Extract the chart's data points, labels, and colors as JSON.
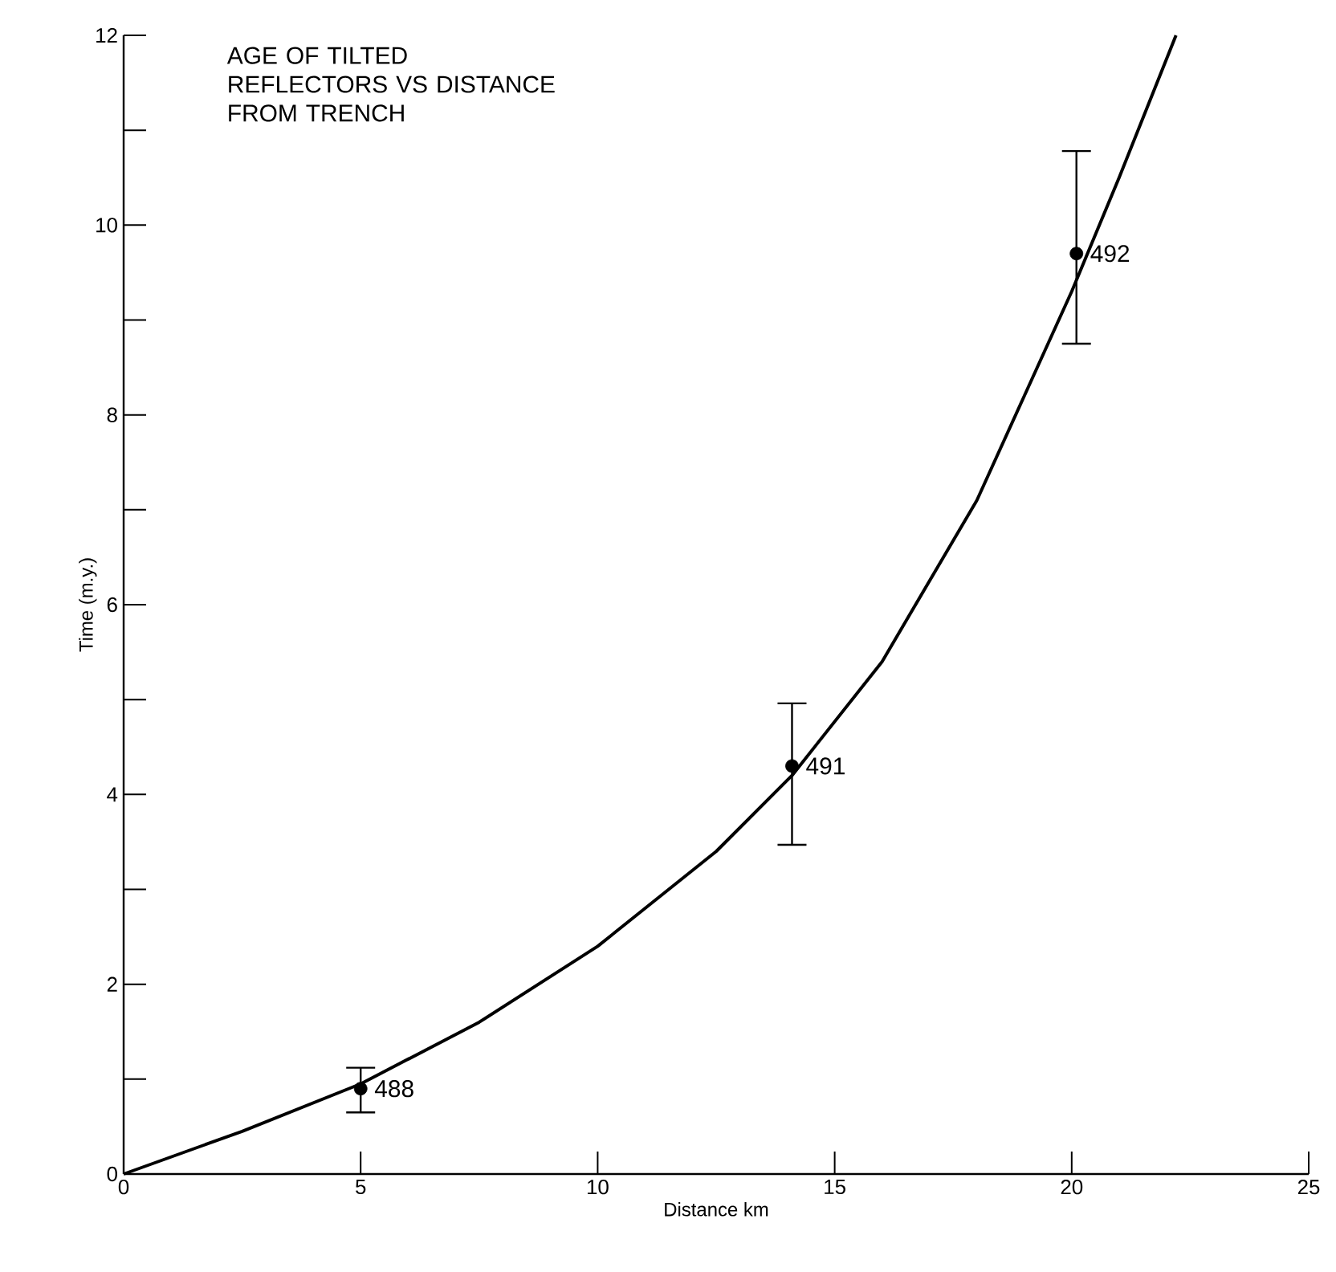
{
  "chart_data": {
    "type": "scatter",
    "title": "AGE OF TILTED REFLECTORS VS DISTANCE FROM TRENCH",
    "xlabel": "Distance km",
    "ylabel": "Time (m.y.)",
    "xlim": [
      0,
      25
    ],
    "ylim": [
      0,
      12
    ],
    "xticks": [
      0,
      5,
      10,
      15,
      20,
      25
    ],
    "yticks": [
      0,
      {
        "value": 1,
        "label": null
      },
      2,
      {
        "value": 3,
        "label": null
      },
      4,
      {
        "value": 5,
        "label": null
      },
      6,
      {
        "value": 7,
        "label": null
      },
      8,
      {
        "value": 9,
        "label": null
      },
      10,
      {
        "value": 11,
        "label": null
      },
      12
    ],
    "grid": false,
    "series": [
      {
        "type": "line",
        "color": "#000000",
        "marker": "none",
        "line_style": "solid",
        "x": [
          0,
          2.5,
          5,
          7.5,
          10,
          12.5,
          14.1,
          16,
          18,
          20,
          21,
          22.2
        ],
        "values": [
          0,
          0.45,
          0.95,
          1.6,
          2.4,
          3.4,
          4.2,
          5.4,
          7.1,
          9.3,
          10.5,
          12
        ]
      },
      {
        "color": "#000000",
        "marker": "circle",
        "x": [
          5,
          14.1,
          20.1
        ],
        "values": [
          0.9,
          4.3,
          9.7
        ],
        "errors": [
          [
            0.65,
            1.12
          ],
          [
            3.47,
            4.96
          ],
          [
            8.75,
            10.78
          ]
        ]
      }
    ],
    "annotations": [
      {
        "text": "488",
        "x": 5,
        "y": 0.9
      },
      {
        "text": "491",
        "x": 14.1,
        "y": 4.3
      },
      {
        "text": "492",
        "x": 20.1,
        "y": 9.7
      }
    ]
  }
}
